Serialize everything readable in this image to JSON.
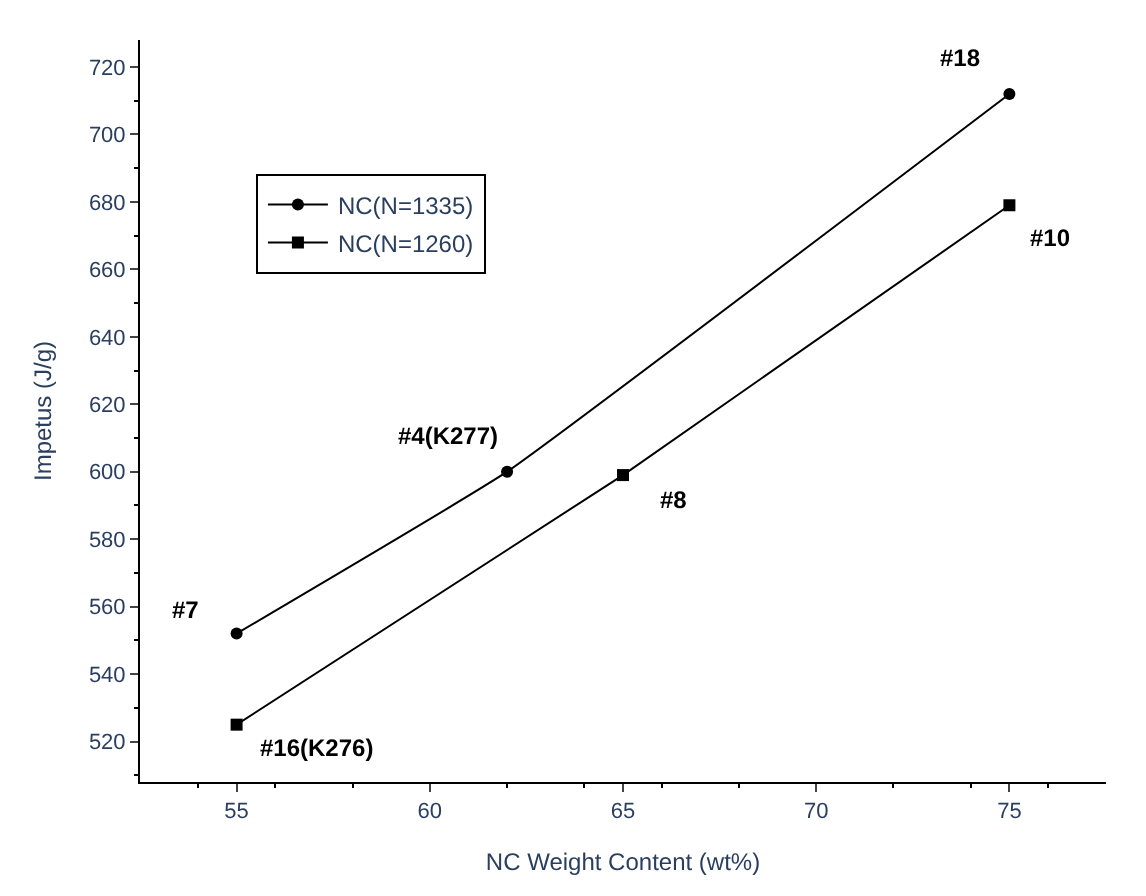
{
  "chart_data": {
    "type": "line",
    "xlabel": "NC Weight Content (wt%)",
    "ylabel": "Impetus (J/g)",
    "xlim": [
      52.5,
      77.5
    ],
    "xticks": [
      55,
      60,
      65,
      70,
      75
    ],
    "ylim": [
      508,
      728
    ],
    "yticks": [
      520,
      540,
      560,
      580,
      600,
      620,
      640,
      660,
      680,
      700,
      720
    ],
    "legend": "top left",
    "line_style": "solid",
    "series": [
      {
        "name": "NC(N=1335)",
        "color": "#000000",
        "marker": "circle",
        "x": [
          55,
          62,
          75
        ],
        "values": [
          552,
          600,
          712
        ]
      },
      {
        "name": "NC(N=1260)",
        "color": "#000000",
        "marker": "square",
        "x": [
          55,
          65,
          75
        ],
        "values": [
          525,
          599,
          679
        ]
      }
    ],
    "annotations": [
      {
        "text": "#7",
        "x": 55,
        "y": 552
      },
      {
        "text": "#4(K277)",
        "x": 62,
        "y": 600
      },
      {
        "text": "#18",
        "x": 75,
        "y": 712
      },
      {
        "text": "#16(K276)",
        "x": 55,
        "y": 525
      },
      {
        "text": "#8",
        "x": 65,
        "y": 599
      },
      {
        "text": "#10",
        "x": 75,
        "y": 679
      }
    ]
  }
}
